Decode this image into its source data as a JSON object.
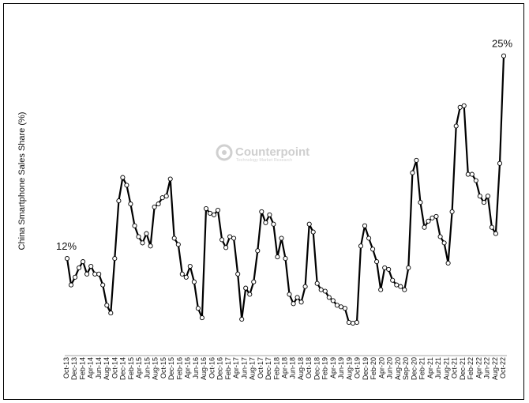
{
  "chart_data": {
    "type": "line",
    "ylabel": "China Smartphone Sales Share (%)",
    "annotations": [
      {
        "text": "12%",
        "at": "Oct-13"
      },
      {
        "text": "25%",
        "at": "Oct-22"
      }
    ],
    "watermark": {
      "name": "Counterpoint",
      "tagline": "Technology Market Research"
    },
    "tick_labels": [
      "Oct-13",
      "Dec-13",
      "Feb-14",
      "Apr-14",
      "Jun-14",
      "Aug-14",
      "Oct-14",
      "Dec-14",
      "Feb-15",
      "Apr-15",
      "Jun-15",
      "Aug-15",
      "Oct-15",
      "Dec-15",
      "Feb-16",
      "Apr-16",
      "Jun-16",
      "Aug-16",
      "Oct-16",
      "Dec-16",
      "Feb-17",
      "Apr-17",
      "Jun-17",
      "Aug-17",
      "Oct-17",
      "Dec-17",
      "Feb-18",
      "Apr-18",
      "Jun-18",
      "Aug-18",
      "Oct-18",
      "Dec-18",
      "Feb-19",
      "Apr-19",
      "Jun-19",
      "Aug-19",
      "Oct-19",
      "Dec-19",
      "Feb-20",
      "Apr-20",
      "Jun-20",
      "Aug-20",
      "Sep-20",
      "Dec-20",
      "Feb-21",
      "Apr-21",
      "Jun-21",
      "Aug-21",
      "Oct-21",
      "Dec-21",
      "Feb-22",
      "Apr-22",
      "Jun-22",
      "Aug-22",
      "Oct-22"
    ],
    "start": "Oct-13",
    "end": "Oct-22",
    "ylim": [
      8,
      26
    ],
    "grid": false,
    "legend": "none",
    "line_color": "#000000",
    "marker_fill": "#ffffff",
    "series": [
      {
        "values": [
          12,
          10.3,
          10.8,
          11.4,
          11.8,
          11.0,
          11.5,
          11.0,
          11.0,
          10.3,
          9.0,
          8.5,
          12.0,
          15.7,
          17.2,
          16.7,
          15.5,
          14.1,
          13.4,
          13.0,
          13.6,
          12.8,
          15.3,
          15.5,
          15.9,
          16.0,
          17.1,
          13.3,
          12.9,
          11.0,
          10.8,
          11.5,
          10.5,
          8.8,
          8.2,
          15.2,
          14.9,
          14.8,
          15.1,
          13.2,
          12.7,
          13.4,
          13.3,
          11.0,
          8.1,
          10.1,
          9.7,
          10.5,
          12.5,
          15.0,
          14.3,
          14.8,
          14.2,
          12.1,
          13.3,
          12.0,
          9.7,
          9.1,
          9.5,
          9.2,
          10.2,
          14.2,
          13.7,
          10.4,
          10.0,
          9.9,
          9.5,
          9.3,
          9.0,
          8.9,
          8.8,
          7.9,
          7.85,
          7.9,
          12.8,
          14.1,
          13.3,
          12.6,
          11.8,
          10.0,
          11.4,
          11.3,
          10.6,
          10.3,
          10.2,
          10.0,
          11.4,
          17.5,
          18.3,
          15.6,
          14.0,
          14.4,
          14.6,
          14.7,
          13.4,
          13.0,
          11.7,
          15.0,
          20.5,
          21.7,
          21.8,
          17.4,
          17.4,
          17.0,
          16.0,
          15.6,
          16.0,
          14.0,
          13.6,
          18.1,
          25.0
        ]
      }
    ]
  }
}
